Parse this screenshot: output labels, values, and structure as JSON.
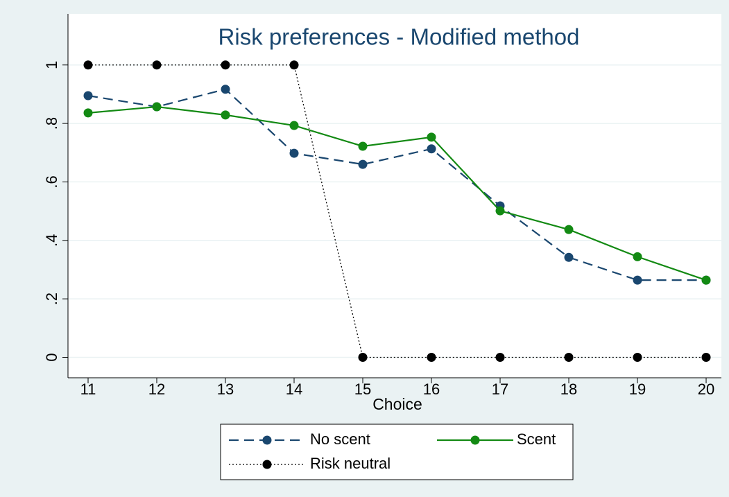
{
  "chart_data": {
    "type": "line",
    "title": "Risk preferences - Modified method",
    "x_label": "Choice",
    "x": [
      11,
      12,
      13,
      14,
      15,
      16,
      17,
      18,
      19,
      20
    ],
    "series": [
      {
        "name": "No scent",
        "color": "#1a476f",
        "dash": "dashed",
        "values": [
          0.895,
          0.857,
          0.917,
          0.698,
          0.66,
          0.713,
          0.518,
          0.342,
          0.264,
          0.264
        ]
      },
      {
        "name": "Scent",
        "color": "#138a13",
        "dash": "solid",
        "values": [
          0.836,
          0.857,
          0.829,
          0.793,
          0.722,
          0.753,
          0.501,
          0.437,
          0.344,
          0.264
        ]
      },
      {
        "name": "Risk neutral",
        "color": "#000000",
        "dash": "dotted",
        "values": [
          1,
          1,
          1,
          1,
          0,
          0,
          0,
          0,
          0,
          0
        ]
      }
    ],
    "xlim": [
      10.707,
      20.222
    ],
    "xticks": [
      11,
      12,
      13,
      14,
      15,
      16,
      17,
      18,
      19,
      20
    ],
    "ylim": [
      -0.07,
      1.08
    ],
    "yticks": [
      0,
      {
        "value": 0.2,
        "label": ".2"
      },
      {
        "value": 0.4,
        "label": ".4"
      },
      {
        "value": 0.6,
        "label": ".6"
      },
      {
        "value": 0.8,
        "label": ".8"
      },
      1
    ],
    "grid": true,
    "legend": "bottom"
  }
}
